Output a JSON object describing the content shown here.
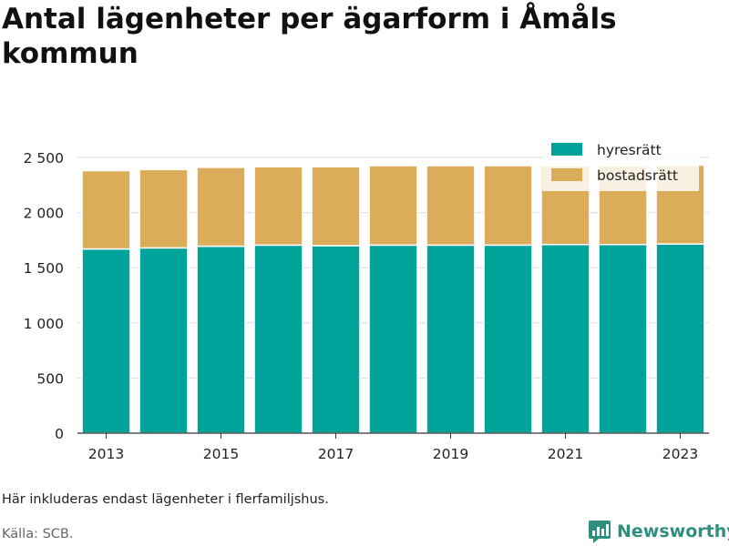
{
  "title": "Antal lägenheter per ägarform i Åmåls kommun",
  "note": "Här inkluderas endast lägenheter i flerfamiljshus.",
  "source": "Källa: SCB.",
  "brand": {
    "name": "Newsworthy",
    "icon": "newsworthy-logo-icon",
    "color": "#2f8f7e"
  },
  "chart_data": {
    "type": "bar",
    "stacked": true,
    "categories": [
      "2013",
      "2014",
      "2015",
      "2016",
      "2017",
      "2018",
      "2019",
      "2020",
      "2021",
      "2022",
      "2023"
    ],
    "x_tick_labels": [
      "2013",
      "2015",
      "2017",
      "2019",
      "2021",
      "2023"
    ],
    "y_tick_labels": [
      "0",
      "500",
      "1 000",
      "1 500",
      "2 000",
      "2 500"
    ],
    "y_ticks": [
      0,
      500,
      1000,
      1500,
      2000,
      2500
    ],
    "ylim": [
      0,
      2500
    ],
    "grid": true,
    "legend_position": "top-right",
    "series": [
      {
        "name": "hyresrätt",
        "color": "#00a39a",
        "values": [
          1670,
          1680,
          1695,
          1705,
          1700,
          1705,
          1705,
          1705,
          1710,
          1710,
          1715
        ]
      },
      {
        "name": "bostadsrätt",
        "color": "#dbad5b",
        "values": [
          710,
          710,
          715,
          710,
          715,
          720,
          720,
          720,
          715,
          715,
          715
        ]
      }
    ]
  }
}
